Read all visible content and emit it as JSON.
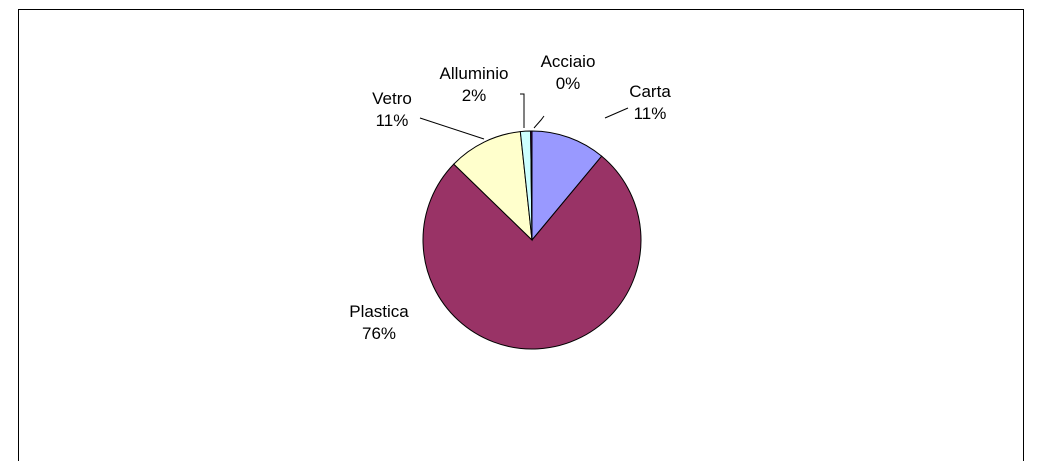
{
  "chart_data": {
    "type": "pie",
    "title": "",
    "slices": [
      {
        "name": "Carta",
        "label": "11%",
        "value": 11,
        "color": "#9999ff"
      },
      {
        "name": "Plastica",
        "label": "76%",
        "value": 76,
        "color": "#993366"
      },
      {
        "name": "Vetro",
        "label": "11%",
        "value": 11,
        "color": "#ffffcc"
      },
      {
        "name": "Alluminio",
        "label": "2%",
        "value": 1.5,
        "color": "#ccffff"
      },
      {
        "name": "Acciaio",
        "label": "0%",
        "value": 0.2,
        "color": "#660066"
      }
    ],
    "start": "12 o'clock",
    "direction": "clockwise",
    "legend": "none",
    "data_labels": "category and percentage, outside with leader lines"
  }
}
